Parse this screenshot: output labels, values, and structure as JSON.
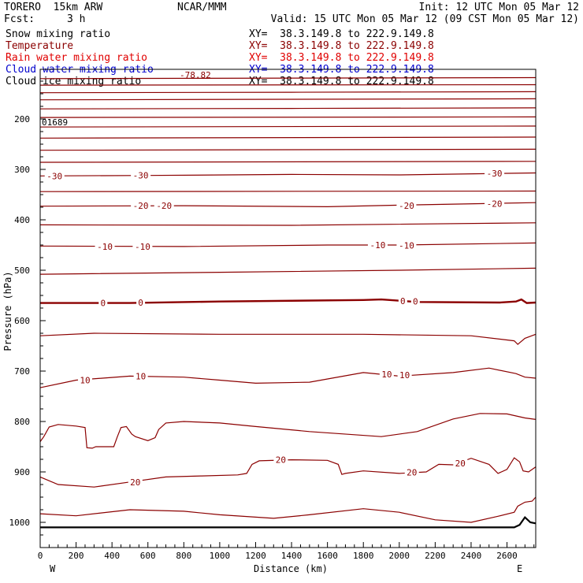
{
  "header": {
    "model": "TORERO  15km ARW",
    "center": "NCAR/MMM",
    "init": "Init: 12 UTC Mon 05 Mar 12",
    "fcst_label": "Fcst:",
    "fcst_value": "3 h",
    "valid": "Valid: 15 UTC Mon 05 Mar 12 (09 CST Mon 05 Mar 12)"
  },
  "legend": [
    {
      "name": "Snow mixing ratio",
      "xy": "XY=  38.3.149.8 to 222.9.149.8",
      "color": "#000000",
      "name_color": "#000000"
    },
    {
      "name": "Temperature",
      "xy": "XY=  38.3.149.8 to 222.9.149.8",
      "color": "#8b0000",
      "name_color": "#8b0000"
    },
    {
      "name": "Rain water mixing ratio",
      "xy": "XY=  38.3.149.8 to 222.9.149.8",
      "color": "#e00000",
      "name_color": "#e00000"
    },
    {
      "name": "Cloud water mixing ratio",
      "xy": "XY=  38.3.149.8 to 222.9.149.8",
      "color": "#0000cc",
      "name_color": "#0000cc"
    },
    {
      "name": "Cloud ice mixing ratio",
      "xy": "XY=  38.3.149.8 to 222.9.149.8",
      "color": "#000000",
      "name_color": "#000000"
    }
  ],
  "chart_data": {
    "type": "line",
    "xlabel": "Distance (km)",
    "ylabel": "Pressure (hPa)",
    "xlim": [
      0,
      2760
    ],
    "ylim": [
      1050,
      100
    ],
    "x_ticks": [
      0,
      200,
      400,
      600,
      800,
      1000,
      1200,
      1400,
      1600,
      1800,
      2000,
      2200,
      2400,
      2600
    ],
    "y_ticks": [
      200,
      300,
      400,
      500,
      600,
      700,
      800,
      900,
      1000
    ],
    "x_end_labels": {
      "left": "W",
      "right": "E"
    },
    "annotations": [
      "-78.82",
      "01689"
    ],
    "line_color": "#8b0000",
    "contours": [
      {
        "level": "",
        "pts": [
          [
            0,
            120
          ],
          [
            2760,
            118
          ]
        ]
      },
      {
        "level": "",
        "pts": [
          [
            0,
            133
          ],
          [
            2760,
            132
          ]
        ]
      },
      {
        "level": "",
        "pts": [
          [
            0,
            148
          ],
          [
            1400,
            147
          ],
          [
            2760,
            146
          ]
        ]
      },
      {
        "level": "",
        "pts": [
          [
            0,
            162
          ],
          [
            2760,
            160
          ]
        ]
      },
      {
        "level": "",
        "pts": [
          [
            0,
            180
          ],
          [
            1400,
            179
          ],
          [
            2760,
            178
          ]
        ]
      },
      {
        "level": "",
        "pts": [
          [
            0,
            197
          ],
          [
            2760,
            196
          ]
        ]
      },
      {
        "level": "",
        "pts": [
          [
            0,
            216
          ],
          [
            2760,
            214
          ]
        ]
      },
      {
        "level": "",
        "pts": [
          [
            0,
            238
          ],
          [
            2760,
            236
          ]
        ]
      },
      {
        "level": "",
        "pts": [
          [
            0,
            262
          ],
          [
            2760,
            260
          ]
        ]
      },
      {
        "level": "",
        "pts": [
          [
            0,
            286
          ],
          [
            2760,
            284
          ]
        ]
      },
      {
        "level": "-30",
        "pts": [
          [
            0,
            313
          ],
          [
            600,
            312
          ],
          [
            1400,
            310
          ],
          [
            2000,
            311
          ],
          [
            2760,
            307
          ]
        ]
      },
      {
        "level": "",
        "pts": [
          [
            0,
            344
          ],
          [
            2760,
            343
          ]
        ]
      },
      {
        "level": "-20",
        "pts": [
          [
            0,
            373
          ],
          [
            800,
            372
          ],
          [
            1600,
            374
          ],
          [
            2000,
            371
          ],
          [
            2760,
            366
          ]
        ]
      },
      {
        "level": "",
        "pts": [
          [
            0,
            410
          ],
          [
            1400,
            411
          ],
          [
            2760,
            406
          ]
        ]
      },
      {
        "level": "-10",
        "pts": [
          [
            0,
            452
          ],
          [
            800,
            453
          ],
          [
            1600,
            450
          ],
          [
            2000,
            450
          ],
          [
            2760,
            446
          ]
        ]
      },
      {
        "level": "",
        "pts": [
          [
            0,
            508
          ],
          [
            1000,
            504
          ],
          [
            2000,
            500
          ],
          [
            2760,
            496
          ]
        ]
      },
      {
        "level": "0",
        "pts": [
          [
            0,
            565
          ],
          [
            500,
            565
          ],
          [
            1000,
            562
          ],
          [
            1800,
            559
          ],
          [
            1900,
            558
          ],
          [
            2100,
            563
          ],
          [
            2560,
            564
          ],
          [
            2650,
            562
          ],
          [
            2680,
            558
          ],
          [
            2710,
            565
          ],
          [
            2760,
            564
          ]
        ]
      },
      {
        "level": "",
        "pts": [
          [
            0,
            630
          ],
          [
            300,
            625
          ],
          [
            1000,
            627
          ],
          [
            1800,
            627
          ],
          [
            2400,
            630
          ],
          [
            2640,
            640
          ],
          [
            2660,
            647
          ],
          [
            2700,
            635
          ],
          [
            2760,
            627
          ]
        ]
      },
      {
        "level": "10",
        "pts": [
          [
            0,
            733
          ],
          [
            200,
            718
          ],
          [
            500,
            710
          ],
          [
            800,
            712
          ],
          [
            1000,
            718
          ],
          [
            1200,
            724
          ],
          [
            1500,
            722
          ],
          [
            1800,
            703
          ],
          [
            2000,
            710
          ],
          [
            2300,
            703
          ],
          [
            2500,
            694
          ],
          [
            2650,
            705
          ],
          [
            2700,
            712
          ],
          [
            2760,
            714
          ]
        ]
      },
      {
        "level": "",
        "pts": [
          [
            0,
            840
          ],
          [
            20,
            830
          ],
          [
            50,
            811
          ],
          [
            100,
            806
          ],
          [
            200,
            809
          ],
          [
            250,
            812
          ],
          [
            260,
            852
          ],
          [
            290,
            853
          ],
          [
            310,
            850
          ],
          [
            410,
            850
          ],
          [
            430,
            830
          ],
          [
            450,
            812
          ],
          [
            480,
            810
          ],
          [
            510,
            825
          ],
          [
            530,
            830
          ],
          [
            600,
            838
          ],
          [
            640,
            832
          ],
          [
            660,
            816
          ],
          [
            700,
            803
          ],
          [
            800,
            800
          ],
          [
            1000,
            803
          ],
          [
            1200,
            810
          ],
          [
            1500,
            820
          ],
          [
            1900,
            830
          ],
          [
            2100,
            820
          ],
          [
            2300,
            795
          ],
          [
            2450,
            784
          ],
          [
            2600,
            785
          ],
          [
            2700,
            793
          ],
          [
            2760,
            796
          ]
        ]
      },
      {
        "level": "20",
        "pts": [
          [
            0,
            910
          ],
          [
            100,
            925
          ],
          [
            300,
            930
          ],
          [
            500,
            920
          ],
          [
            700,
            910
          ],
          [
            900,
            908
          ],
          [
            1100,
            906
          ],
          [
            1150,
            903
          ],
          [
            1180,
            885
          ],
          [
            1220,
            878
          ],
          [
            1400,
            876
          ],
          [
            1600,
            877
          ],
          [
            1660,
            885
          ],
          [
            1680,
            905
          ],
          [
            1700,
            903
          ],
          [
            1800,
            898
          ],
          [
            2000,
            903
          ],
          [
            2150,
            900
          ],
          [
            2220,
            885
          ],
          [
            2300,
            886
          ],
          [
            2400,
            873
          ],
          [
            2500,
            885
          ],
          [
            2550,
            903
          ],
          [
            2600,
            895
          ],
          [
            2640,
            872
          ],
          [
            2670,
            880
          ],
          [
            2690,
            898
          ],
          [
            2720,
            900
          ],
          [
            2760,
            890
          ]
        ]
      },
      {
        "level": "",
        "pts": [
          [
            0,
            983
          ],
          [
            200,
            987
          ],
          [
            500,
            975
          ],
          [
            800,
            978
          ],
          [
            1000,
            985
          ],
          [
            1300,
            992
          ],
          [
            1500,
            985
          ],
          [
            1800,
            973
          ],
          [
            2000,
            980
          ],
          [
            2200,
            995
          ],
          [
            2400,
            1000
          ],
          [
            2550,
            988
          ],
          [
            2640,
            980
          ],
          [
            2660,
            968
          ],
          [
            2700,
            960
          ],
          [
            2740,
            958
          ],
          [
            2760,
            950
          ]
        ]
      }
    ],
    "ground": [
      [
        0,
        1010
      ],
      [
        1500,
        1010
      ],
      [
        2640,
        1010
      ],
      [
        2670,
        1005
      ],
      [
        2700,
        990
      ],
      [
        2730,
        1000
      ],
      [
        2760,
        1002
      ]
    ],
    "contour_labels": [
      {
        "text": "-30",
        "x": 80,
        "p": 313
      },
      {
        "text": "-30",
        "x": 560,
        "p": 312
      },
      {
        "text": "-30",
        "x": 2530,
        "p": 308
      },
      {
        "text": "-20",
        "x": 560,
        "p": 372
      },
      {
        "text": "-20",
        "x": 690,
        "p": 372
      },
      {
        "text": "-20",
        "x": 2040,
        "p": 372
      },
      {
        "text": "-20",
        "x": 2530,
        "p": 368
      },
      {
        "text": "-10",
        "x": 360,
        "p": 453
      },
      {
        "text": "-10",
        "x": 570,
        "p": 453
      },
      {
        "text": "-10",
        "x": 1880,
        "p": 450
      },
      {
        "text": "-10",
        "x": 2040,
        "p": 451
      },
      {
        "text": "0",
        "x": 350,
        "p": 565
      },
      {
        "text": "0",
        "x": 560,
        "p": 564
      },
      {
        "text": "0",
        "x": 2020,
        "p": 561
      },
      {
        "text": "0",
        "x": 2090,
        "p": 562
      },
      {
        "text": "10",
        "x": 250,
        "p": 718
      },
      {
        "text": "10",
        "x": 560,
        "p": 710
      },
      {
        "text": "10",
        "x": 1930,
        "p": 706
      },
      {
        "text": "10",
        "x": 2030,
        "p": 708
      },
      {
        "text": "20",
        "x": 1340,
        "p": 876
      },
      {
        "text": "20",
        "x": 2070,
        "p": 901
      },
      {
        "text": "20",
        "x": 2340,
        "p": 883
      },
      {
        "text": "20",
        "x": 530,
        "p": 920
      }
    ]
  }
}
